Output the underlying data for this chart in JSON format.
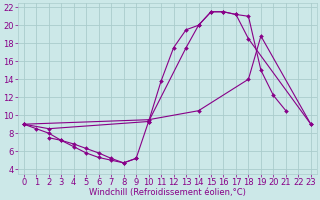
{
  "background_color": "#cce8e8",
  "grid_color": "#aacccc",
  "line_color": "#880088",
  "marker": "D",
  "markersize": 2.0,
  "linewidth": 0.8,
  "xlabel": "Windchill (Refroidissement éolien,°C)",
  "xlabel_fontsize": 6,
  "tick_fontsize": 6,
  "xlim": [
    -0.5,
    23.5
  ],
  "ylim": [
    3.5,
    22.5
  ],
  "xticks": [
    0,
    1,
    2,
    3,
    4,
    5,
    6,
    7,
    8,
    9,
    10,
    11,
    12,
    13,
    14,
    15,
    16,
    17,
    18,
    19,
    20,
    21,
    22,
    23
  ],
  "yticks": [
    4,
    6,
    8,
    10,
    12,
    14,
    16,
    18,
    20,
    22
  ],
  "series": [
    {
      "x": [
        0,
        1,
        2,
        3,
        4,
        5,
        6,
        7,
        8,
        9,
        10,
        11,
        12,
        13,
        14,
        15,
        16,
        17,
        18,
        19,
        20,
        21
      ],
      "y": [
        9,
        8.5,
        8.0,
        7.2,
        6.5,
        5.8,
        5.3,
        5.0,
        4.7,
        5.2,
        9.3,
        13.8,
        17.5,
        19.5,
        20.0,
        21.5,
        21.5,
        21.2,
        21.0,
        15.0,
        12.2,
        10.5
      ]
    },
    {
      "x": [
        0,
        2,
        10,
        13,
        14,
        15,
        16,
        17,
        18,
        23
      ],
      "y": [
        9,
        8.5,
        9.3,
        17.5,
        20.0,
        21.5,
        21.5,
        21.2,
        18.5,
        9.0
      ]
    },
    {
      "x": [
        0,
        10,
        14,
        18,
        19,
        23
      ],
      "y": [
        9.0,
        9.5,
        10.5,
        14.0,
        18.8,
        9.0
      ]
    },
    {
      "x": [
        2,
        3,
        4,
        5,
        6,
        7,
        8,
        9
      ],
      "y": [
        7.5,
        7.2,
        6.8,
        6.3,
        5.8,
        5.2,
        4.7,
        5.2
      ]
    }
  ]
}
